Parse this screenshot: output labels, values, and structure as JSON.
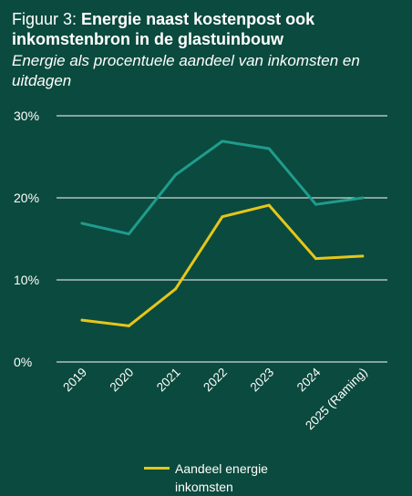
{
  "header": {
    "title_prefix": "Figuur 3: ",
    "title_main": "Energie naast kostenpost ook inkomstenbron in de glastuinbouw",
    "subtitle": "Energie als procentuele aandeel van inkomsten en uitdagen"
  },
  "colors": {
    "background": "#0b4a3e",
    "series_costs": "#1f9c8e",
    "series_income": "#e6c619",
    "grid": "#ffffff"
  },
  "chart_data": {
    "type": "line",
    "categories": [
      "2019",
      "2020",
      "2021",
      "2022",
      "2023",
      "2024",
      "2025 (Raming)"
    ],
    "series": [
      {
        "name": "",
        "color": "#1f9c8e",
        "values": [
          16.9,
          15.6,
          22.8,
          26.9,
          26.0,
          19.2,
          20.0
        ]
      },
      {
        "name": "Aandeel energie inkomsten",
        "color": "#e6c619",
        "values": [
          5.1,
          4.4,
          8.9,
          17.7,
          19.1,
          12.6,
          12.9
        ]
      }
    ],
    "ylim": [
      0,
      30
    ],
    "yticks": [
      0,
      10,
      20,
      30
    ],
    "ytick_labels": [
      "0%",
      "10%",
      "20%",
      "30%"
    ],
    "grid": true,
    "legend_position": "bottom"
  },
  "legend": {
    "label": "Aandeel energie inkomsten"
  }
}
